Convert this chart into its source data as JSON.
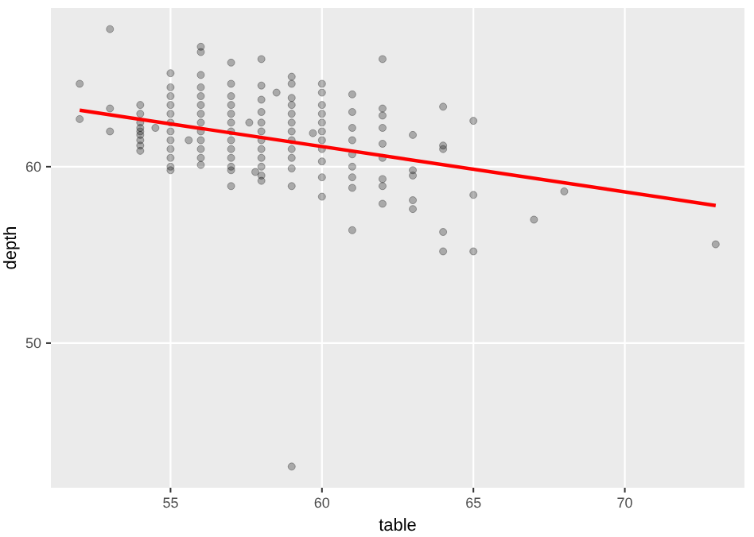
{
  "chart_data": {
    "type": "scatter",
    "xlabel": "table",
    "ylabel": "depth",
    "xlim": [
      51.05,
      73.95
    ],
    "ylim": [
      41.8,
      69.0
    ],
    "xticks": [
      55,
      60,
      65,
      70
    ],
    "yticks": [
      50,
      60
    ],
    "grid": true,
    "marker": "circle",
    "series": [
      {
        "color": "#000000",
        "x": [
          52,
          52,
          53,
          53,
          53,
          54,
          54,
          54,
          54,
          54,
          54,
          54,
          54,
          54,
          54.5,
          55,
          55,
          55,
          55,
          55,
          55,
          55,
          55,
          55,
          55,
          55,
          55,
          55.6,
          56,
          56,
          56,
          56,
          56,
          56,
          56,
          56,
          56,
          56,
          56,
          56,
          56,
          57,
          57,
          57,
          57,
          57,
          57,
          57,
          57,
          57,
          57,
          57,
          57,
          57,
          57.6,
          58,
          58,
          58,
          58,
          58,
          58,
          58,
          58,
          58,
          58,
          58,
          58,
          57.8,
          58.5,
          59,
          59,
          59,
          59,
          59,
          59,
          59,
          59,
          59,
          59,
          59,
          59,
          59,
          59.7,
          60,
          60,
          60,
          60,
          60,
          60,
          60,
          60,
          60,
          60,
          60,
          61,
          61,
          61,
          61,
          61,
          61,
          61,
          61,
          61,
          62,
          62,
          62,
          62,
          62,
          62,
          62,
          62,
          62,
          63,
          63,
          63,
          63,
          63,
          64,
          64,
          64,
          64,
          64,
          65,
          65,
          65,
          67,
          68,
          73
        ],
        "values": [
          64.7,
          62.7,
          67.8,
          63.3,
          62.0,
          63.5,
          63.0,
          62.5,
          62.2,
          62.0,
          61.8,
          61.5,
          61.2,
          60.9,
          62.2,
          65.3,
          64.5,
          64.0,
          63.5,
          63.0,
          62.5,
          62.0,
          61.5,
          61.0,
          60.5,
          60.0,
          59.8,
          61.5,
          66.8,
          66.5,
          65.2,
          64.5,
          64.0,
          63.5,
          63.0,
          62.5,
          62.0,
          61.5,
          61.0,
          60.5,
          60.1,
          65.9,
          64.7,
          64.0,
          63.5,
          63.0,
          62.5,
          62.0,
          61.5,
          61.0,
          60.5,
          60.0,
          59.8,
          58.9,
          62.5,
          66.1,
          64.6,
          63.8,
          63.1,
          62.5,
          62.0,
          61.5,
          61.0,
          60.5,
          60.0,
          59.5,
          59.2,
          59.7,
          64.2,
          65.1,
          64.7,
          63.9,
          63.5,
          63.0,
          62.5,
          62.0,
          61.5,
          61.0,
          60.5,
          59.9,
          58.9,
          43.0,
          61.9,
          64.7,
          64.2,
          63.5,
          63.0,
          62.5,
          62.0,
          61.5,
          61.0,
          60.3,
          59.4,
          58.3,
          64.1,
          63.1,
          62.2,
          61.5,
          60.7,
          60.0,
          59.4,
          58.8,
          56.4,
          66.1,
          63.3,
          62.9,
          62.2,
          61.3,
          60.5,
          59.3,
          58.9,
          57.9,
          61.8,
          59.8,
          59.5,
          58.1,
          57.6,
          63.4,
          61.2,
          61.0,
          56.3,
          55.2,
          62.6,
          58.4,
          55.2,
          57.0,
          58.6,
          55.6
        ]
      },
      {
        "type": "line",
        "color": "#ff0000",
        "marker": "none",
        "x": [
          52,
          73
        ],
        "values": [
          63.2,
          57.8
        ]
      }
    ]
  }
}
